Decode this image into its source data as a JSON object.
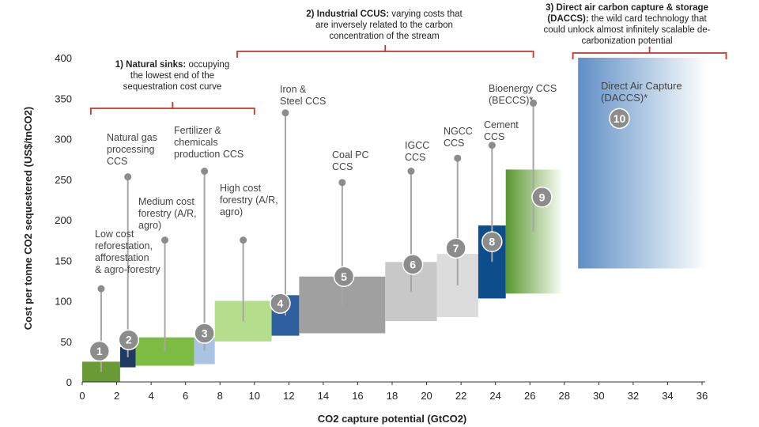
{
  "colors": {
    "bracket": "#c0392b",
    "axis": "#333333",
    "stem": "#a6a6a6",
    "badge": "#8c8c8c",
    "badge_text": "#ffffff"
  },
  "chart_data": {
    "type": "bar",
    "variant": "marginal-abatement-cost-curve",
    "xlabel": "CO2 capture potential (GtCO2)",
    "ylabel": "Cost per tonne CO2 sequestered (US$/tnCO2)",
    "xlim": [
      0,
      36
    ],
    "ylim": [
      0,
      400
    ],
    "xticks": [
      0,
      2,
      4,
      6,
      8,
      10,
      12,
      14,
      16,
      18,
      20,
      22,
      24,
      26,
      28,
      30,
      32,
      34,
      36
    ],
    "yticks": [
      0,
      50,
      100,
      150,
      200,
      250,
      300,
      350,
      400
    ],
    "bars": [
      {
        "id": "1",
        "label": [
          "Low cost",
          "reforestation,",
          "afforestation",
          "& agro-forestry"
        ],
        "x0": 0,
        "x1": 2.2,
        "y_low": 0,
        "y_high": 25,
        "marker_y": 115,
        "color": "#6a9a34",
        "color_to": "#6a9a34"
      },
      {
        "id": "2",
        "label": [
          "Natural gas",
          "processing",
          "CCS"
        ],
        "x0": 2.2,
        "x1": 3.1,
        "y_low": 18,
        "y_high": 43,
        "marker_y": 253,
        "color": "#1f3b63",
        "color_to": "#1f3b63"
      },
      {
        "id": "3",
        "label": [
          "Medium cost",
          "forestry (A/R,",
          "agro)"
        ],
        "x0": 3.1,
        "x1": 6.5,
        "y_low": 20,
        "y_high": 55,
        "marker_y": 175,
        "color": "#7dbb42",
        "color_to": "#7dbb42"
      },
      {
        "id": "4",
        "label": [
          "Fertilizer &",
          "chemicals",
          "production CCS"
        ],
        "x0": 6.5,
        "x1": 7.7,
        "y_low": 22,
        "y_high": 55,
        "marker_y": 260,
        "color": "#a9c4e2",
        "color_to": "#a9c4e2"
      },
      {
        "id": "5",
        "label": [
          "High cost",
          "forestry (A/R,",
          "agro)"
        ],
        "x0": 7.7,
        "x1": 11.0,
        "y_low": 50,
        "y_high": 100,
        "marker_y": 175,
        "color": "#b4dd8c",
        "color_to": "#b4dd8c"
      },
      {
        "id": "6",
        "label": [
          "Iron &",
          "Steel CCS"
        ],
        "x0": 11.0,
        "x1": 12.6,
        "y_low": 57,
        "y_high": 107,
        "marker_y": 332,
        "color": "#2e5f9e",
        "color_to": "#2e5f9e"
      },
      {
        "id": "7",
        "label": [
          "Coal PC",
          "CCS"
        ],
        "x0": 12.6,
        "x1": 17.6,
        "y_low": 60,
        "y_high": 130,
        "marker_y": 246,
        "color": "#a0a0a0",
        "color_to": "#a0a0a0"
      },
      {
        "id": "8",
        "label": [
          "IGCC",
          "CCS"
        ],
        "x0": 17.6,
        "x1": 20.6,
        "y_low": 75,
        "y_high": 148,
        "marker_y": 260,
        "color": "#c8c8c8",
        "color_to": "#c8c8c8"
      },
      {
        "id": "9",
        "label": [
          "NGCC",
          "CCS"
        ],
        "x0": 20.6,
        "x1": 23.0,
        "y_low": 80,
        "y_high": 158,
        "marker_y": 276,
        "color": "#dcdcdc",
        "color_to": "#dcdcdc"
      },
      {
        "id": "10",
        "label": [
          "Cement",
          "CCS"
        ],
        "x0": 23.0,
        "x1": 24.6,
        "y_low": 103,
        "y_high": 193,
        "marker_y": 292,
        "color": "#0e4d8c",
        "color_to": "#0e4d8c"
      },
      {
        "id": "11",
        "label": [
          "Bioenergy CCS",
          "(BECCS)*"
        ],
        "x0": 24.6,
        "x1": 27.8,
        "y_low": 109,
        "y_high": 262,
        "marker_y": 344,
        "color": "#5a9630",
        "color_to": "#f6fbf1"
      },
      {
        "id": "12",
        "label": [
          "Direct Air Capture",
          "(DACCS)*"
        ],
        "x0": 28.8,
        "x1": 36.3,
        "y_low": 140,
        "y_high": 400,
        "marker_y": null,
        "color": "#5f8fc6",
        "color_to": "#ffffff"
      }
    ],
    "badges": [
      {
        "n": "1",
        "x": 1.0,
        "y": 38
      },
      {
        "n": "2",
        "x": 2.7,
        "y": 52
      },
      {
        "n": "3",
        "x": 7.1,
        "y": 60
      },
      {
        "n": "4",
        "x": 11.5,
        "y": 97
      },
      {
        "n": "5",
        "x": 15.2,
        "y": 130
      },
      {
        "n": "6",
        "x": 19.2,
        "y": 145
      },
      {
        "n": "7",
        "x": 21.7,
        "y": 165
      },
      {
        "n": "8",
        "x": 23.8,
        "y": 173
      },
      {
        "n": "9",
        "x": 26.7,
        "y": 228
      },
      {
        "n": "10",
        "x": 31.2,
        "y": 325
      }
    ],
    "annotations": [
      {
        "bold": "1) Natural sinks:",
        "text": [
          "occupying",
          "the lowest end of the",
          "sequestration cost curve"
        ],
        "x0": 0.5,
        "x1": 10.0
      },
      {
        "bold": "2) Industrial CCUS:",
        "text": [
          "varying costs that",
          "are inversely related to the carbon",
          "concentration of the stream"
        ],
        "x0": 9.0,
        "x1": 26.2
      },
      {
        "bold": "3) Direct air carbon capture & storage",
        "bold2": "(DACCS):",
        "text": [
          "the wild card technology that",
          "could unlock almost infinitely scalable de-",
          "carbonization potential"
        ],
        "x0": 28.5,
        "x1": 37.4
      }
    ]
  }
}
